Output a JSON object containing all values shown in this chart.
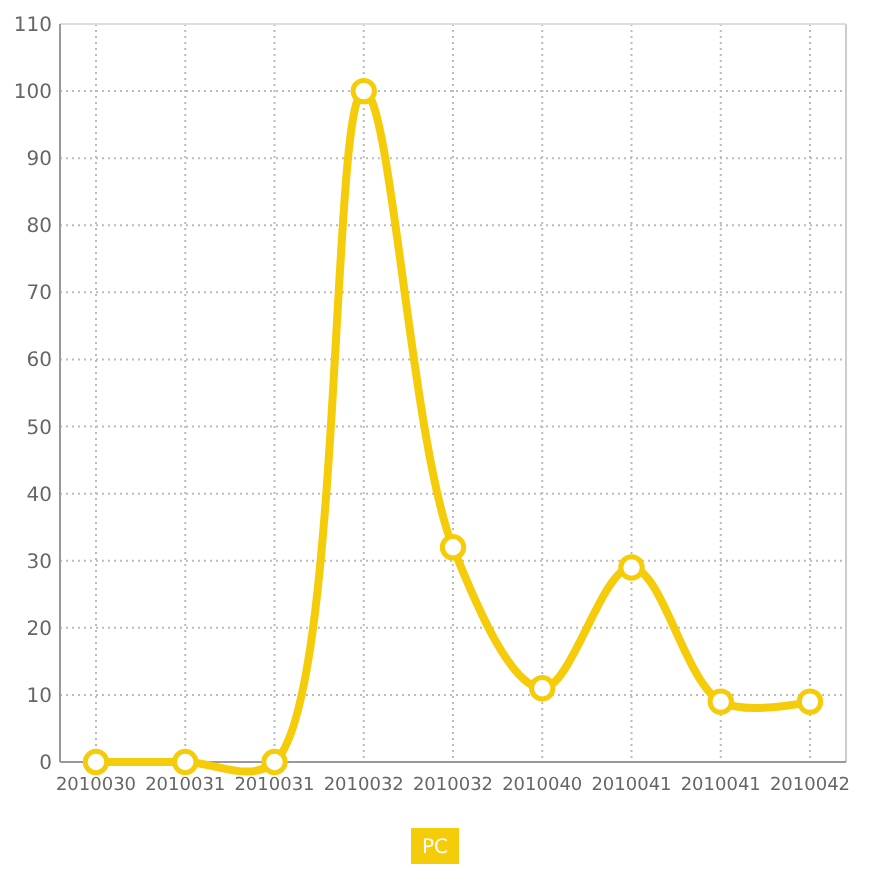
{
  "chart_data": {
    "type": "line",
    "categories": [
      "2010030",
      "2010031",
      "2010031",
      "2010032",
      "2010032",
      "2010040",
      "2010041",
      "2010041",
      "2010042"
    ],
    "series": [
      {
        "name": "PC",
        "color": "#f5cc0a",
        "values": [
          0,
          0,
          0,
          100,
          32,
          11,
          29,
          9,
          9
        ]
      }
    ],
    "ylim": [
      0,
      110
    ],
    "yticks": [
      0,
      10,
      20,
      30,
      40,
      50,
      60,
      70,
      80,
      90,
      100,
      110
    ],
    "grid": true,
    "legend": "bottom",
    "marker": "circle",
    "line_style": "solid"
  }
}
